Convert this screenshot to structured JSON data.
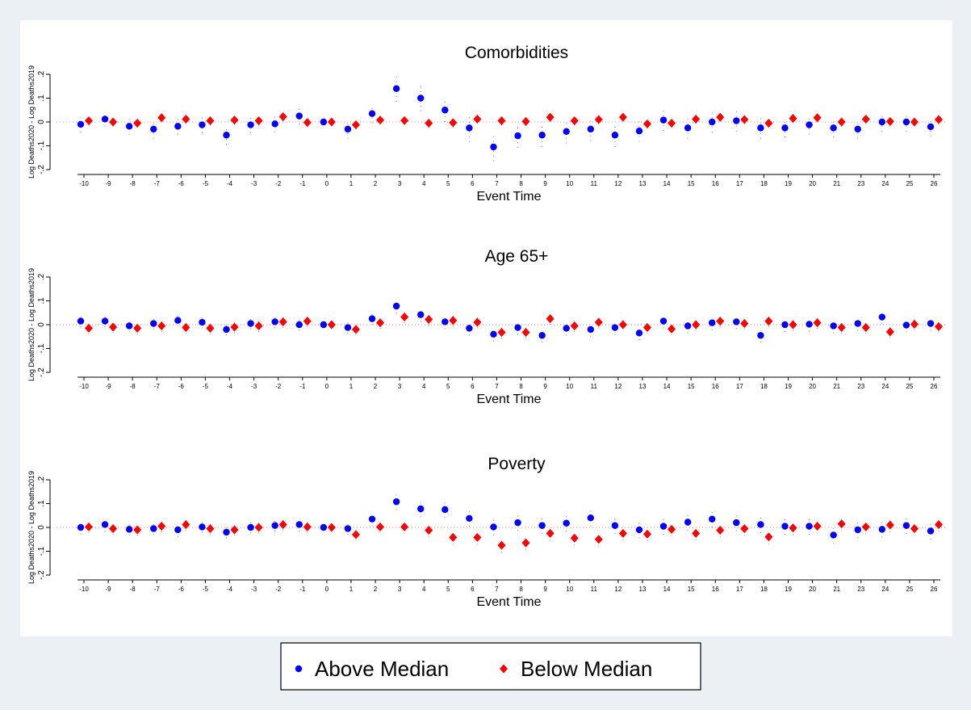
{
  "chart_data": [
    {
      "type": "scatter",
      "title": "Comorbidities",
      "xlabel": "Event Time",
      "ylabel": "Log Deaths2020 - Log Deaths2019",
      "categories": [
        -10,
        -9,
        -8,
        -7,
        -6,
        -5,
        -4,
        -3,
        -2,
        -1,
        0,
        1,
        2,
        3,
        4,
        5,
        6,
        7,
        8,
        9,
        10,
        11,
        12,
        13,
        14,
        15,
        16,
        17,
        18,
        19,
        20,
        21,
        23,
        24,
        25,
        26
      ],
      "series": [
        {
          "name": "Above Median",
          "color": "#0000ff",
          "values": [
            -0.01,
            0.012,
            -0.018,
            -0.03,
            -0.018,
            -0.012,
            -0.055,
            -0.012,
            -0.008,
            0.025,
            0,
            -0.03,
            0.035,
            0.14,
            0.1,
            0.05,
            -0.025,
            -0.105,
            -0.058,
            -0.055,
            -0.04,
            -0.03,
            -0.055,
            -0.038,
            0.008,
            -0.025,
            0,
            0.005,
            -0.025,
            -0.025,
            -0.012,
            -0.025,
            -0.03,
            0,
            0,
            -0.02
          ],
          "errors": [
            0.035,
            0.03,
            0.035,
            0.04,
            0.035,
            0.035,
            0.04,
            0.035,
            0.035,
            0.035,
            0,
            0.04,
            0.04,
            0.055,
            0.055,
            0.05,
            0.06,
            0.06,
            0.05,
            0.05,
            0.05,
            0.05,
            0.05,
            0.045,
            0.045,
            0.045,
            0.045,
            0.045,
            0.045,
            0.04,
            0.04,
            0.04,
            0.04,
            0.04,
            0.04,
            0.04
          ]
        },
        {
          "name": "Below Median",
          "color": "#ff0000",
          "values": [
            0.005,
            0,
            -0.005,
            0.018,
            0.012,
            0.005,
            0.008,
            0.005,
            0.022,
            -0.002,
            0,
            -0.012,
            0.008,
            0.006,
            -0.005,
            -0.003,
            0.012,
            0.005,
            0.002,
            0.02,
            0.005,
            0.01,
            0.02,
            -0.008,
            -0.005,
            0.012,
            0.02,
            0.01,
            -0.005,
            0.015,
            0.018,
            0,
            0.012,
            0.002,
            0,
            0.01
          ],
          "errors": [
            0.02,
            0.02,
            0.02,
            0.02,
            0.02,
            0.02,
            0.02,
            0.02,
            0.02,
            0.02,
            0,
            0.02,
            0.02,
            0.02,
            0.02,
            0.02,
            0.02,
            0.02,
            0.02,
            0.02,
            0.02,
            0.02,
            0.02,
            0.02,
            0.02,
            0.02,
            0.02,
            0.02,
            0.02,
            0.02,
            0.02,
            0.02,
            0.02,
            0.02,
            0.02,
            0.02
          ]
        }
      ],
      "ylim": [
        -0.2,
        0.2
      ],
      "yticks": [
        {
          "value": -0.2,
          "label": "-.2"
        },
        {
          "value": -0.1,
          "label": "-.1"
        },
        0,
        {
          "value": 0.1,
          "label": ".1"
        },
        {
          "value": 0.2,
          "label": ".2"
        }
      ],
      "zero_line": true
    },
    {
      "type": "scatter",
      "title": "Age 65+",
      "xlabel": "Event Time",
      "ylabel": "Log Deaths2020 - Log Deaths2019",
      "categories": [
        -10,
        -9,
        -8,
        -7,
        -6,
        -5,
        -4,
        -3,
        -2,
        -1,
        0,
        1,
        2,
        3,
        4,
        5,
        6,
        7,
        8,
        9,
        10,
        11,
        12,
        13,
        14,
        15,
        16,
        17,
        18,
        19,
        20,
        21,
        23,
        24,
        25,
        26
      ],
      "series": [
        {
          "name": "Above Median",
          "color": "#0000ff",
          "values": [
            0.015,
            0.015,
            -0.005,
            0.005,
            0.018,
            0.01,
            -0.02,
            0.005,
            0.012,
            0,
            0,
            -0.012,
            0.025,
            0.078,
            0.042,
            0.012,
            -0.015,
            -0.04,
            -0.012,
            -0.045,
            -0.015,
            -0.02,
            -0.012,
            -0.035,
            0.015,
            -0.005,
            0.008,
            0.012,
            -0.045,
            0,
            0.002,
            -0.005,
            0.005,
            0.032,
            -0.002,
            0.005
          ],
          "errors": [
            0.025,
            0.025,
            0.025,
            0.025,
            0.025,
            0.025,
            0.025,
            0.025,
            0.025,
            0.025,
            0,
            0.025,
            0.025,
            0.03,
            0.03,
            0.03,
            0.03,
            0.03,
            0.03,
            0.03,
            0.03,
            0.03,
            0.03,
            0.03,
            0.03,
            0.03,
            0.03,
            0.03,
            0.03,
            0.03,
            0.03,
            0.03,
            0.03,
            0.03,
            0.03,
            0.03
          ]
        },
        {
          "name": "Below Median",
          "color": "#ff0000",
          "values": [
            -0.015,
            -0.01,
            -0.015,
            -0.005,
            -0.012,
            -0.015,
            -0.01,
            -0.005,
            0.012,
            0.015,
            0,
            -0.02,
            0.008,
            0.032,
            0.022,
            0.018,
            0.01,
            -0.032,
            -0.032,
            0.025,
            -0.005,
            0.01,
            0,
            -0.012,
            -0.018,
            0,
            0.015,
            0.005,
            0.015,
            0,
            0.008,
            -0.012,
            -0.012,
            -0.03,
            0.002,
            -0.008
          ],
          "errors": [
            0.025,
            0.025,
            0.025,
            0.025,
            0.025,
            0.025,
            0.025,
            0.025,
            0.025,
            0.025,
            0,
            0.025,
            0.025,
            0.025,
            0.025,
            0.025,
            0.025,
            0.025,
            0.025,
            0.025,
            0.025,
            0.025,
            0.025,
            0.025,
            0.025,
            0.025,
            0.025,
            0.025,
            0.025,
            0.025,
            0.025,
            0.025,
            0.025,
            0.025,
            0.025,
            0.025
          ]
        }
      ],
      "ylim": [
        -0.2,
        0.2
      ],
      "yticks": [
        {
          "value": -0.2,
          "label": "-.2"
        },
        {
          "value": -0.1,
          "label": "-.1"
        },
        0,
        {
          "value": 0.1,
          "label": ".1"
        },
        {
          "value": 0.2,
          "label": ".2"
        }
      ],
      "zero_line": true
    },
    {
      "type": "scatter",
      "title": "Poverty",
      "xlabel": "Event Time",
      "ylabel": "Log Deaths2020 - Log Deaths2019",
      "categories": [
        -10,
        -9,
        -8,
        -7,
        -6,
        -5,
        -4,
        -3,
        -2,
        -1,
        0,
        1,
        2,
        3,
        4,
        5,
        6,
        7,
        8,
        9,
        10,
        11,
        12,
        13,
        14,
        15,
        16,
        17,
        18,
        19,
        20,
        21,
        23,
        24,
        25,
        26
      ],
      "series": [
        {
          "name": "Above Median",
          "color": "#0000ff",
          "values": [
            0,
            0.012,
            -0.008,
            -0.005,
            -0.01,
            0.002,
            -0.02,
            0,
            0.008,
            0.012,
            0,
            -0.005,
            0.035,
            0.108,
            0.078,
            0.075,
            0.038,
            0.002,
            0.02,
            0.008,
            0.018,
            0.04,
            0.008,
            -0.01,
            0.005,
            0.022,
            0.035,
            0.02,
            0.012,
            0.005,
            0.005,
            -0.032,
            -0.01,
            -0.008,
            0.008,
            -0.015
          ],
          "errors": [
            0.03,
            0.03,
            0.025,
            0.025,
            0.03,
            0.025,
            0.025,
            0.025,
            0.025,
            0.03,
            0,
            0.025,
            0.03,
            0.035,
            0.035,
            0.035,
            0.035,
            0.035,
            0.035,
            0.035,
            0.035,
            0.035,
            0.035,
            0.035,
            0.035,
            0.035,
            0.035,
            0.035,
            0.035,
            0.035,
            0.035,
            0.035,
            0.035,
            0.035,
            0.035,
            0.035
          ]
        },
        {
          "name": "Below Median",
          "color": "#ff0000",
          "values": [
            0.002,
            -0.005,
            -0.01,
            0.005,
            0.012,
            -0.005,
            -0.01,
            0,
            0.012,
            0.002,
            0,
            -0.03,
            0.002,
            0.002,
            -0.012,
            -0.042,
            -0.042,
            -0.075,
            -0.065,
            -0.025,
            -0.045,
            -0.05,
            -0.025,
            -0.028,
            -0.008,
            -0.025,
            -0.012,
            -0.005,
            -0.04,
            -0.002,
            0.005,
            0.015,
            0.002,
            0.01,
            -0.005,
            0.012
          ],
          "errors": [
            0.025,
            0.025,
            0.025,
            0.025,
            0.025,
            0.025,
            0.025,
            0.025,
            0.025,
            0.025,
            0,
            0.025,
            0.025,
            0.03,
            0.03,
            0.03,
            0.03,
            0.03,
            0.03,
            0.03,
            0.03,
            0.03,
            0.03,
            0.03,
            0.03,
            0.03,
            0.03,
            0.03,
            0.03,
            0.03,
            0.03,
            0.03,
            0.03,
            0.03,
            0.03,
            0.03
          ]
        }
      ],
      "ylim": [
        -0.2,
        0.2
      ],
      "yticks": [
        {
          "value": -0.2,
          "label": "-.2"
        },
        {
          "value": -0.1,
          "label": "-.1"
        },
        0,
        {
          "value": 0.1,
          "label": ".1"
        },
        {
          "value": 0.2,
          "label": ".2"
        }
      ],
      "zero_line": true
    }
  ]
}
